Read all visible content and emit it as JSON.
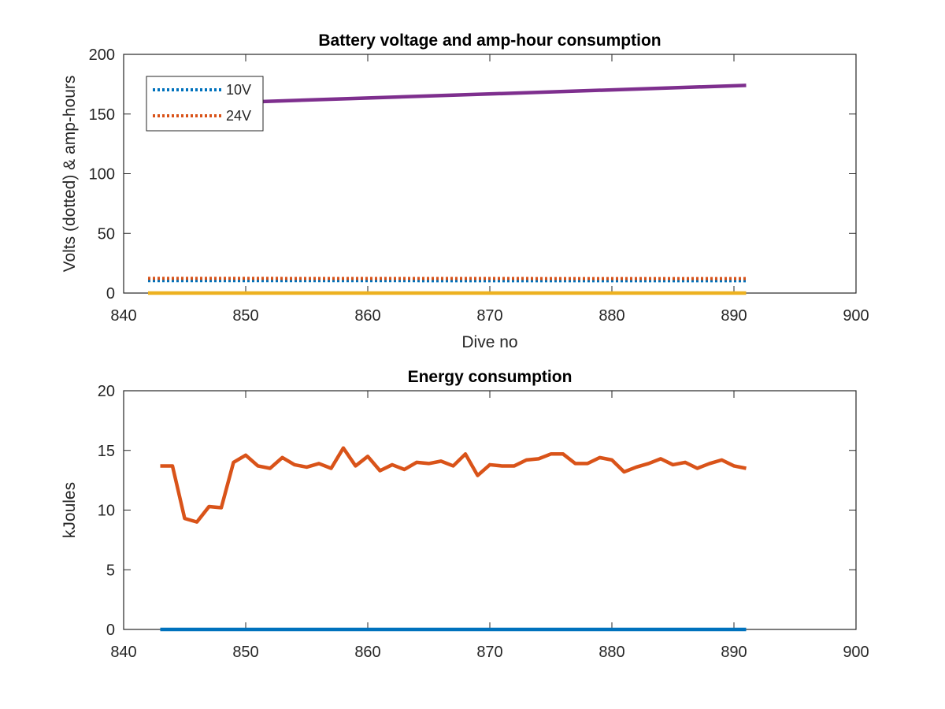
{
  "colors": {
    "blue": "#0072BD",
    "orange": "#D95319",
    "yellow": "#EDB120",
    "purple": "#7E2F8E",
    "axis": "#262626"
  },
  "chart_data": [
    {
      "type": "line",
      "title": "Battery voltage and amp-hour consumption",
      "xlabel": "Dive no",
      "ylabel": "Volts (dotted) & amp-hours",
      "xlim": [
        840,
        900
      ],
      "ylim": [
        0,
        200
      ],
      "xticks": [
        "840",
        "850",
        "860",
        "870",
        "880",
        "890",
        "900"
      ],
      "yticks": [
        "0",
        "50",
        "100",
        "150",
        "200"
      ],
      "grid": false,
      "legend": {
        "placement": "top-left",
        "entries": [
          "10V",
          "24V"
        ]
      },
      "series": [
        {
          "name": "10V",
          "style": "dotted",
          "color": "blue",
          "x": [
            842,
            891
          ],
          "values": [
            10.4,
            10.3
          ]
        },
        {
          "name": "24V",
          "style": "dotted",
          "color": "orange",
          "x": [
            842,
            891
          ],
          "values": [
            12.3,
            12.1
          ]
        },
        {
          "style": "solid",
          "color": "yellow",
          "x": [
            842,
            891
          ],
          "values": [
            0,
            0
          ]
        },
        {
          "style": "solid",
          "color": "purple",
          "x": [
            850,
            891
          ],
          "values": [
            160,
            174
          ]
        }
      ]
    },
    {
      "type": "line",
      "title": "Energy consumption",
      "xlabel": "",
      "ylabel": "kJoules",
      "xlim": [
        840,
        900
      ],
      "ylim": [
        0,
        20
      ],
      "xticks": [
        "840",
        "850",
        "860",
        "870",
        "880",
        "890",
        "900"
      ],
      "yticks": [
        "0",
        "5",
        "10",
        "15",
        "20"
      ],
      "grid": false,
      "series": [
        {
          "style": "solid",
          "color": "blue",
          "x": [
            843,
            891
          ],
          "values": [
            0,
            0
          ]
        },
        {
          "style": "solid",
          "color": "orange",
          "x": [
            843,
            844,
            845,
            846,
            847,
            848,
            849,
            850,
            851,
            852,
            853,
            854,
            855,
            856,
            857,
            858,
            859,
            860,
            861,
            862,
            863,
            864,
            865,
            866,
            867,
            868,
            869,
            870,
            871,
            872,
            873,
            874,
            875,
            876,
            877,
            878,
            879,
            880,
            881,
            882,
            883,
            884,
            885,
            886,
            887,
            888,
            889,
            890,
            891
          ],
          "values": [
            13.7,
            13.7,
            9.3,
            9.0,
            10.3,
            10.2,
            14.0,
            14.6,
            13.7,
            13.5,
            14.4,
            13.8,
            13.6,
            13.9,
            13.5,
            15.2,
            13.7,
            14.5,
            13.3,
            13.8,
            13.4,
            14.0,
            13.9,
            14.1,
            13.7,
            14.7,
            12.9,
            13.8,
            13.7,
            13.7,
            14.2,
            14.3,
            14.7,
            14.7,
            13.9,
            13.9,
            14.4,
            14.2,
            13.2,
            13.6,
            13.9,
            14.3,
            13.8,
            14.0,
            13.5,
            13.9,
            14.2,
            13.7,
            13.5
          ]
        }
      ]
    }
  ]
}
